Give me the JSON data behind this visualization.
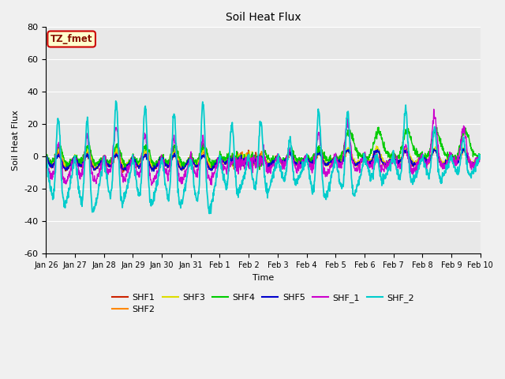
{
  "title": "Soil Heat Flux",
  "xlabel": "Time",
  "ylabel": "Soil Heat Flux",
  "ylim": [
    -60,
    80
  ],
  "yticks": [
    -60,
    -40,
    -20,
    0,
    20,
    40,
    60,
    80
  ],
  "fig_bg": "#f0f0f0",
  "plot_bg": "#e8e8e8",
  "grid_color": "#ffffff",
  "series_colors": {
    "SHF1": "#cc2200",
    "SHF2": "#ff8800",
    "SHF3": "#dddd00",
    "SHF4": "#00cc00",
    "SHF5": "#0000cc",
    "SHF_1": "#cc00cc",
    "SHF_2": "#00cccc"
  },
  "annotation_text": "TZ_fmet",
  "annotation_bg": "#ffffcc",
  "annotation_border": "#cc0000",
  "x_ticklabels": [
    "Jan 26",
    "Jan 27",
    "Jan 28",
    "Jan 29",
    "Jan 30",
    "Jan 31",
    "Feb 1",
    "Feb 2",
    "Feb 3",
    "Feb 4",
    "Feb 5",
    "Feb 6",
    "Feb 7",
    "Feb 8",
    "Feb 9",
    "Feb 10"
  ],
  "n_points": 1440,
  "n_days": 15
}
